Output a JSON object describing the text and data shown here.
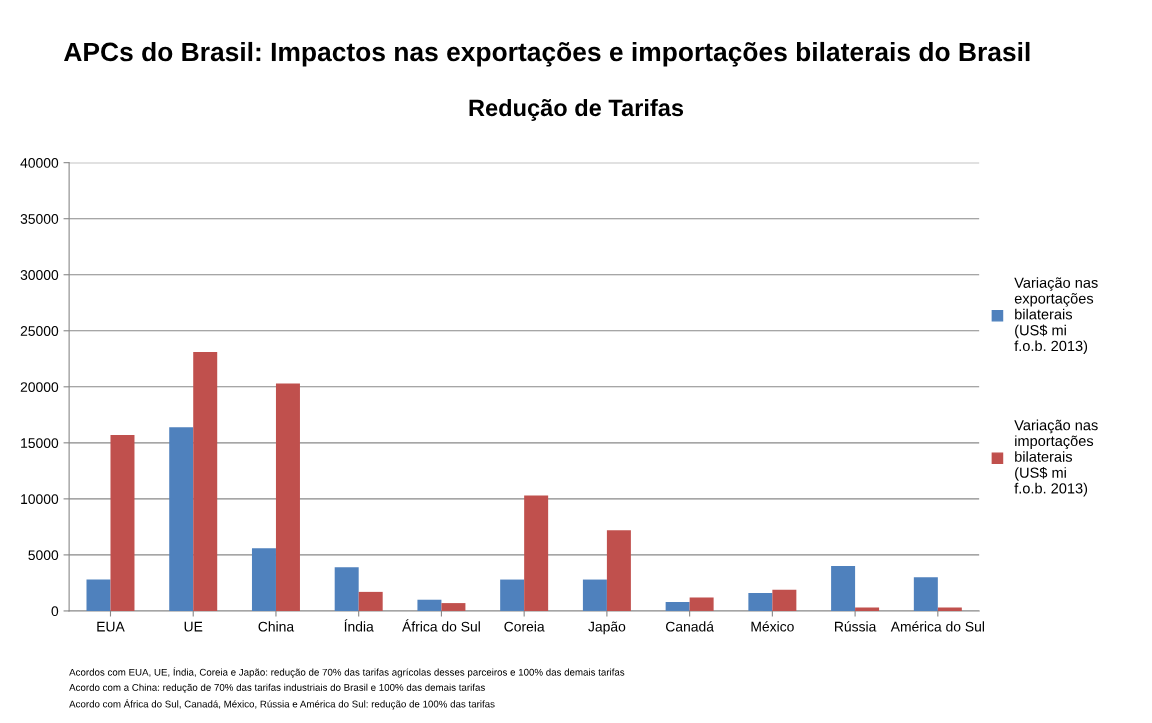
{
  "chart_data": {
    "type": "bar",
    "title": "APCs do Brasil: Impactos nas exportações e importações bilaterais do Brasil",
    "subtitle": "Redução de Tarifas",
    "categories": [
      "EUA",
      "UE",
      "China",
      "Índia",
      "África do Sul",
      "Coreia",
      "Japão",
      "Canadá",
      "México",
      "Rússia",
      "América do Sul"
    ],
    "series": [
      {
        "name": "Variação nas exportações bilaterais (US$ mi f.o.b. 2013)",
        "color": "#4f81bd",
        "values": [
          2800,
          16400,
          5600,
          3900,
          1000,
          2800,
          2800,
          800,
          1600,
          4000,
          3000
        ]
      },
      {
        "name": "Variação nas importações bilaterais (US$ mi f.o.b. 2013)",
        "color": "#c0504d",
        "values": [
          15700,
          23100,
          20300,
          1700,
          700,
          10300,
          7200,
          1200,
          1900,
          300,
          300
        ]
      }
    ],
    "ylim": [
      0,
      40000
    ],
    "yticks": [
      0,
      5000,
      10000,
      15000,
      20000,
      25000,
      30000,
      35000,
      40000
    ],
    "grid": "y",
    "legend": "right",
    "annotations": [
      "Acordos com EUA, UE, Índia, Coreia e Japão: redução de 70% das tarifas agrícolas desses parceiros e 100% das demais tarifas",
      "Acordo com a China: redução de 70% das tarifas industriais do Brasil e 100% das demais tarifas",
      "Acordo com África do Sul, Canadá, México, Rússia e América do Sul: redução de 100% das tarifas"
    ]
  }
}
